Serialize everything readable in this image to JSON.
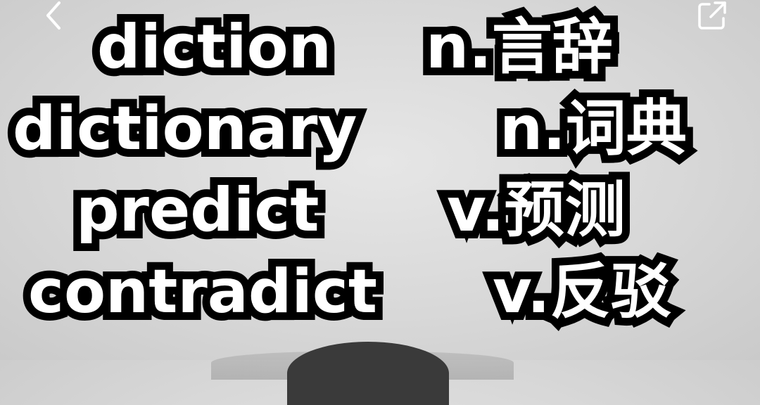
{
  "nav": {
    "back_icon": "chevron-left-icon",
    "share_icon": "external-share-icon"
  },
  "subtitles": [
    {
      "word": "diction",
      "gloss": "n.言辞"
    },
    {
      "word": "dictionary",
      "gloss": "n.词典"
    },
    {
      "word": "predict",
      "gloss": "v.预测"
    },
    {
      "word": "contradict",
      "gloss": "v.反驳"
    }
  ],
  "colors": {
    "text_fill": "#ffffff",
    "text_outline": "#000000",
    "background": "#d8d8d8"
  }
}
